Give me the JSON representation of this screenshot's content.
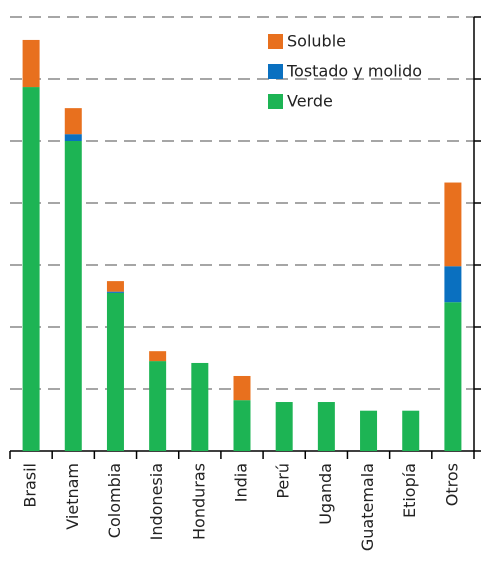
{
  "chart_data": {
    "type": "stacked_bar",
    "categories": [
      "Brasil",
      "Vietnam",
      "Colombia",
      "Indonesia",
      "Honduras",
      "India",
      "Perú",
      "Uganda",
      "Guatemala",
      "Etiopía",
      "Otros"
    ],
    "series": [
      {
        "name": "Verde",
        "color": "#1db454",
        "values": [
          5.87,
          5.0,
          2.55,
          1.45,
          1.42,
          0.82,
          0.79,
          0.79,
          0.65,
          0.65,
          2.4
        ]
      },
      {
        "name": "Tostado y molido",
        "color": "#0a70c0",
        "values": [
          0,
          0.11,
          0.02,
          0,
          0,
          0,
          0,
          0,
          0,
          0,
          0.58
        ]
      },
      {
        "name": "Soluble",
        "color": "#e8701e",
        "values": [
          0.76,
          0.42,
          0.17,
          0.16,
          0,
          0.39,
          0,
          0,
          0,
          0,
          1.35
        ]
      }
    ],
    "ylim": [
      0,
      7
    ],
    "yticks": [
      0,
      1,
      2,
      3,
      4,
      5,
      6,
      7
    ],
    "grid": true
  }
}
